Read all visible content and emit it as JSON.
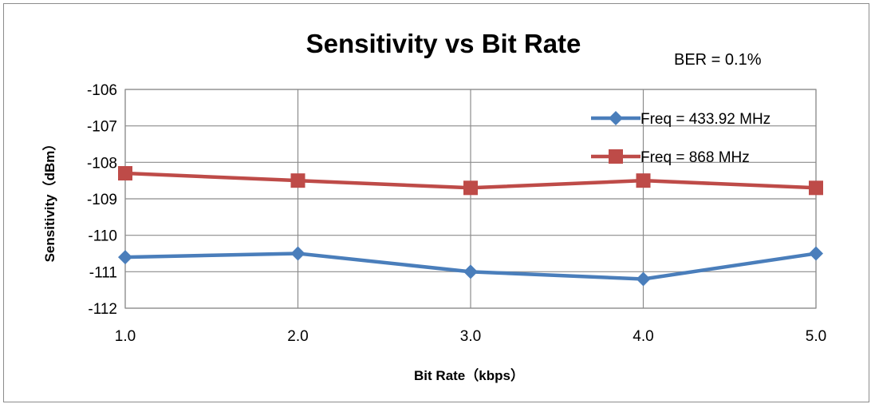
{
  "chart_data": {
    "type": "line",
    "title": "Sensitivity vs Bit Rate",
    "annotation": "BER = 0.1%",
    "xlabel": "Bit Rate（kbps）",
    "ylabel": "Sensitivity（dBm）",
    "x": [
      1.0,
      2.0,
      3.0,
      4.0,
      5.0
    ],
    "x_tick_labels": [
      "1.0",
      "2.0",
      "3.0",
      "4.0",
      "5.0"
    ],
    "ylim": [
      -112,
      -106
    ],
    "y_ticks": [
      -106,
      -107,
      -108,
      -109,
      -110,
      -111,
      -112
    ],
    "y_tick_labels": [
      "-106",
      "-107",
      "-108",
      "-109",
      "-110",
      "-111",
      "-112"
    ],
    "grid": true,
    "legend_position": "top-right",
    "series": [
      {
        "name": "Freq = 433.92 MHz",
        "values": [
          -110.6,
          -110.5,
          -111.0,
          -111.2,
          -110.5
        ],
        "color": "#4a7ebb",
        "marker": "diamond"
      },
      {
        "name": "Freq = 868 MHz",
        "values": [
          -108.3,
          -108.5,
          -108.7,
          -108.5,
          -108.7
        ],
        "color": "#be4b48",
        "marker": "square"
      }
    ]
  }
}
